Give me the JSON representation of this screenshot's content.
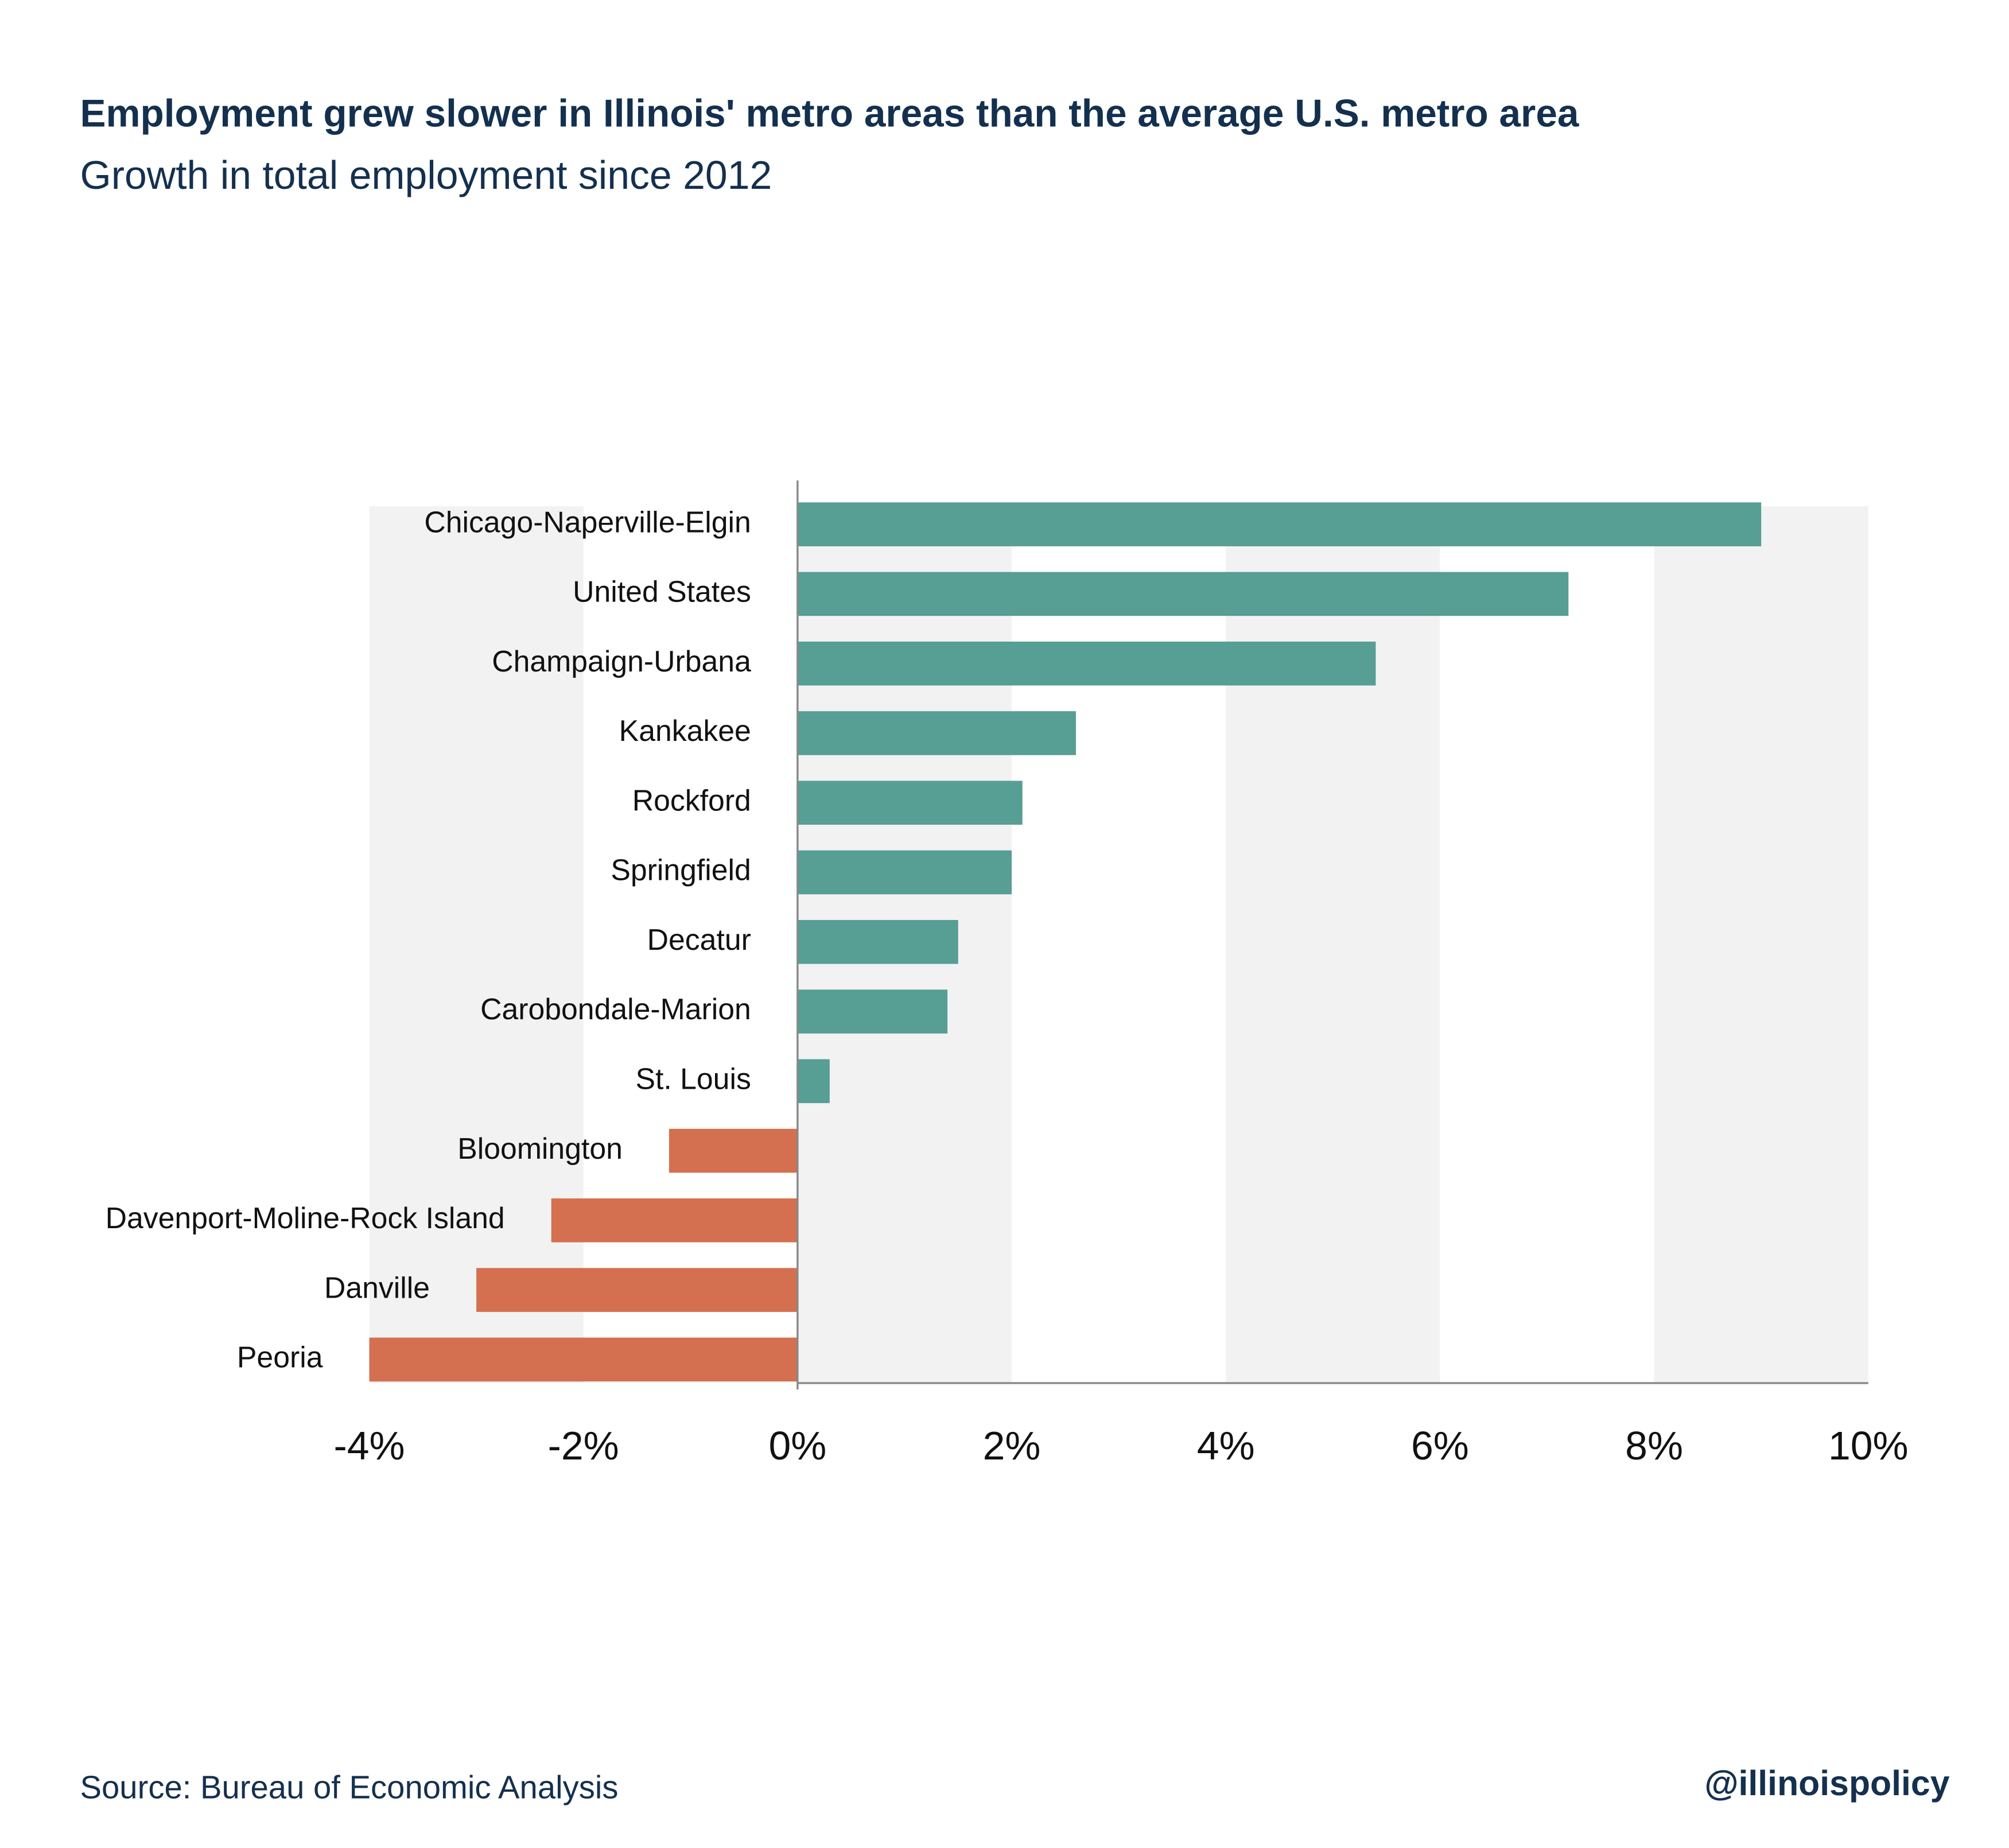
{
  "chart_data": {
    "type": "barh",
    "title": "Employment grew slower in Illinois' metro areas than the average U.S. metro area",
    "subtitle": "Growth in total employment since 2012",
    "categories": [
      "Chicago-Naperville-Elgin",
      "United States",
      "Champaign-Urbana",
      "Kankakee",
      "Rockford",
      "Springfield",
      "Decatur",
      "Carobondale-Marion",
      "St. Louis",
      "Bloomington",
      "Davenport-Moline-Rock Island",
      "Danville",
      "Peoria"
    ],
    "values": [
      9.0,
      7.2,
      5.4,
      2.6,
      2.1,
      2.0,
      1.5,
      1.4,
      0.3,
      -1.2,
      -2.3,
      -3.0,
      -4.0
    ],
    "color_positive": "#579e94",
    "color_negative": "#d4704f",
    "xlim": [
      -4,
      10
    ],
    "xticks": [
      {
        "value": -4,
        "label": "-4%"
      },
      {
        "value": -2,
        "label": "-2%"
      },
      {
        "value": 0,
        "label": "0%"
      },
      {
        "value": 2,
        "label": "2%"
      },
      {
        "value": 4,
        "label": "4%"
      },
      {
        "value": 6,
        "label": "6%"
      },
      {
        "value": 8,
        "label": "8%"
      },
      {
        "value": 10,
        "label": "10%"
      }
    ],
    "grid_bands": true,
    "source": "Source:  Bureau of Economic Analysis",
    "credit": "@illinoispolicy"
  }
}
